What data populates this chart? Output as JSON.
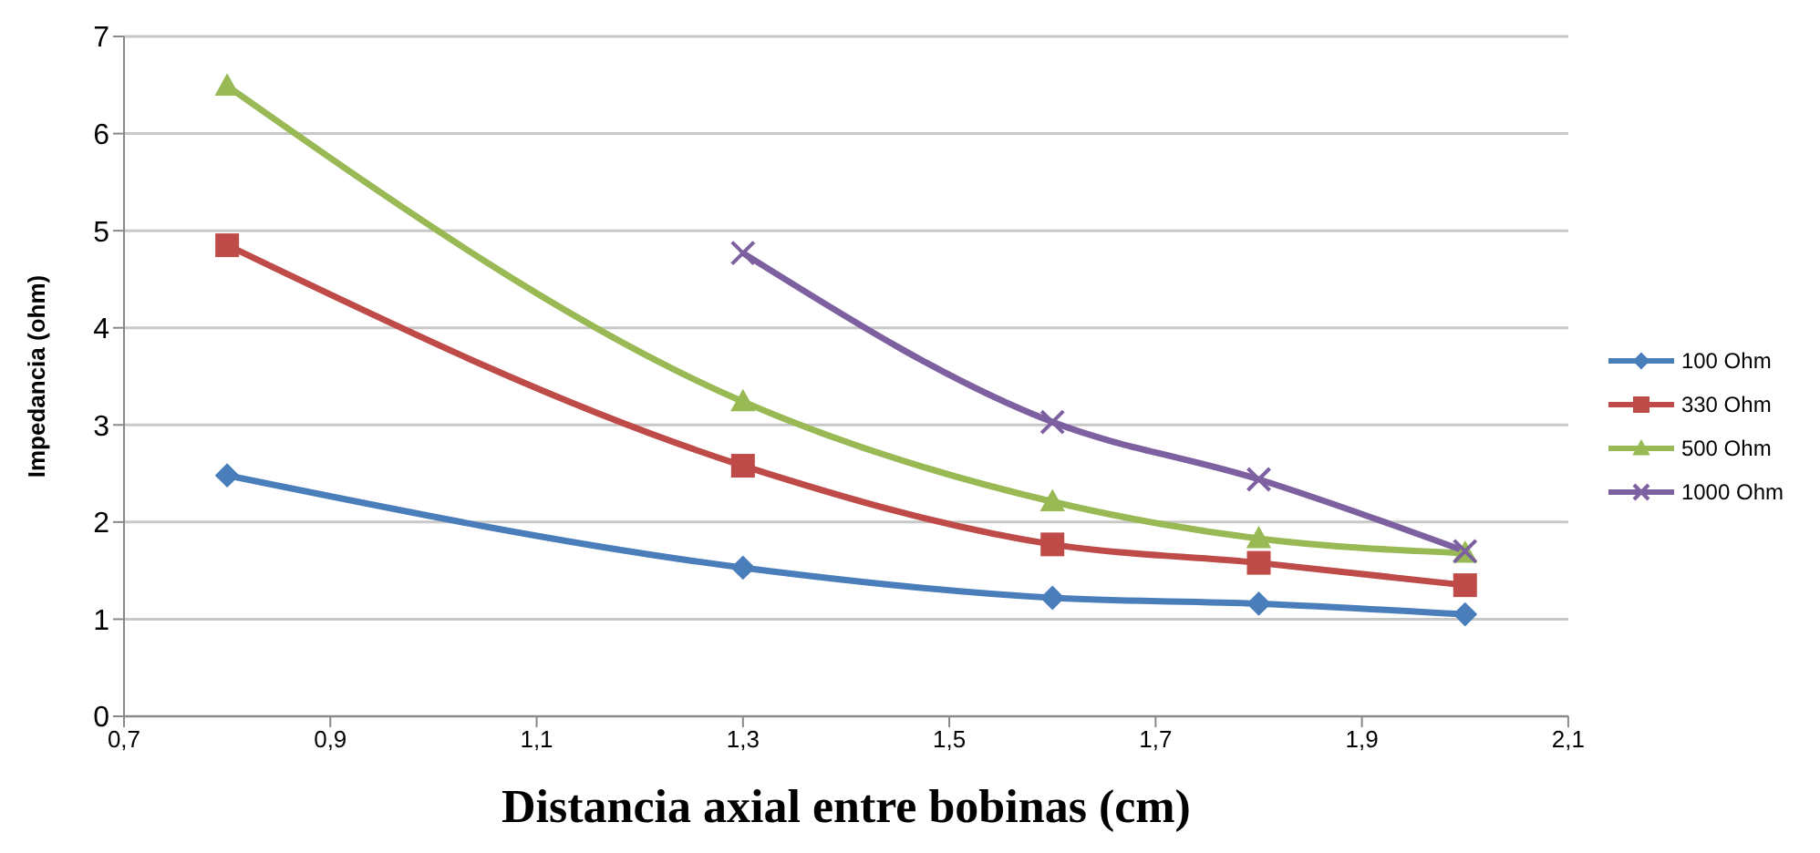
{
  "chart_data": {
    "type": "line",
    "xlabel": "Distancia axial entre bobinas (cm)",
    "ylabel": "Impedancia (ohm)",
    "x": [
      0.8,
      1.3,
      1.6,
      1.8,
      2.0
    ],
    "series": [
      {
        "name": "100 Ohm",
        "color": "#4a7ebb",
        "marker": "diamond",
        "values": [
          2.48,
          1.53,
          1.22,
          1.16,
          1.05
        ]
      },
      {
        "name": "330 Ohm",
        "color": "#be4b48",
        "marker": "square",
        "values": [
          4.85,
          2.58,
          1.77,
          1.58,
          1.35
        ]
      },
      {
        "name": "500 Ohm",
        "color": "#98b954",
        "marker": "triangle",
        "values": [
          6.49,
          3.24,
          2.21,
          1.83,
          1.68
        ]
      },
      {
        "name": "1000 Ohm",
        "color": "#7d60a0",
        "marker": "cross",
        "values": [
          null,
          4.77,
          3.03,
          2.44,
          1.7
        ]
      }
    ],
    "xlim": [
      0.7,
      2.1
    ],
    "xticks": [
      {
        "value": 0.7,
        "label": "0,7"
      },
      {
        "value": 0.9,
        "label": "0,9"
      },
      {
        "value": 1.1,
        "label": "1,1"
      },
      {
        "value": 1.3,
        "label": "1,3"
      },
      {
        "value": 1.5,
        "label": "1,5"
      },
      {
        "value": 1.7,
        "label": "1,7"
      },
      {
        "value": 1.9,
        "label": "1,9"
      },
      {
        "value": 2.1,
        "label": "2,1"
      }
    ],
    "ylim": [
      0,
      7
    ],
    "yticks": [
      0,
      1,
      2,
      3,
      4,
      5,
      6,
      7
    ],
    "grid": "y",
    "legend": "right",
    "line_style": "solid"
  }
}
